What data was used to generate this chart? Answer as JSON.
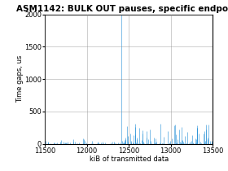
{
  "title": "ASM1142: BULK OUT pauses, specific endpoint",
  "xlabel": "kiB of transmitted data",
  "ylabel": "Time gaps, us",
  "xlim": [
    11500,
    13500
  ],
  "ylim": [
    0,
    2000
  ],
  "xticks": [
    11500,
    12000,
    12500,
    13000,
    13500
  ],
  "yticks": [
    0,
    500,
    1000,
    1500,
    2000
  ],
  "line_color": "#1f8dd6",
  "bg_color": "#ffffff",
  "grid_color": "#888888",
  "title_fontsize": 7.5,
  "label_fontsize": 6,
  "tick_fontsize": 6,
  "seed": 7,
  "x_start": 11500,
  "x_end": 13500,
  "big_spike_x": 12415,
  "big_spike_y": 2000
}
